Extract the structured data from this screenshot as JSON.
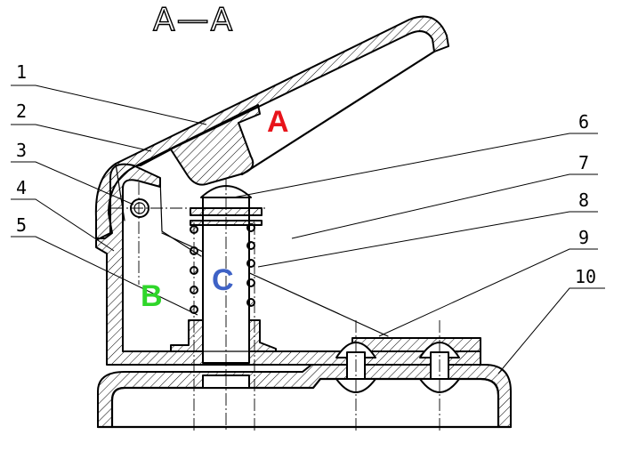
{
  "section_title": "A—A",
  "part_numbers": [
    "1",
    "2",
    "3",
    "4",
    "5",
    "6",
    "7",
    "8",
    "9",
    "10"
  ],
  "region_labels": [
    {
      "text": "A",
      "color": "#e8141b"
    },
    {
      "text": "B",
      "color": "#2fd62a"
    },
    {
      "text": "C",
      "color": "#3e62c6"
    }
  ]
}
